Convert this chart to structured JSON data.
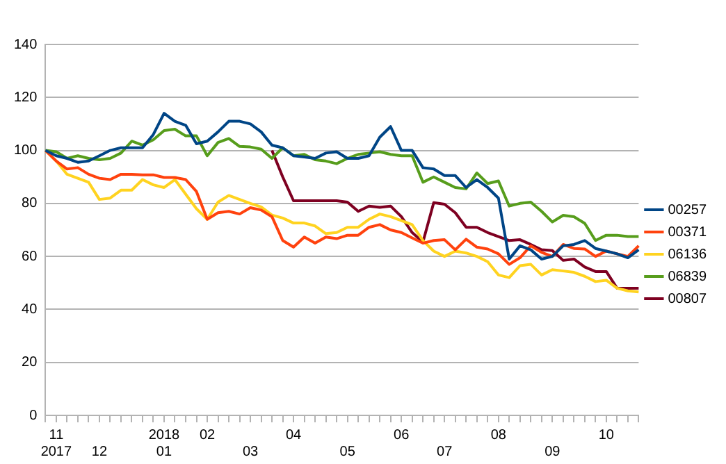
{
  "chart_data": {
    "type": "line",
    "categories": [
      null,
      "11\n2017",
      null,
      null,
      null,
      "12",
      null,
      null,
      null,
      null,
      null,
      "2018\n01",
      null,
      null,
      null,
      "02",
      null,
      null,
      null,
      "03",
      null,
      null,
      null,
      "04",
      null,
      null,
      null,
      null,
      "05",
      null,
      null,
      null,
      null,
      "06",
      null,
      null,
      null,
      "07",
      null,
      null,
      null,
      null,
      "08",
      null,
      null,
      null,
      null,
      "09",
      null,
      null,
      null,
      null,
      "10",
      null,
      null,
      null
    ],
    "series": [
      {
        "name": "00257",
        "color": "#004586",
        "values": [
          100,
          98,
          97,
          95.5,
          96,
          98,
          100,
          101,
          101,
          101,
          106,
          114,
          111,
          109.5,
          102.5,
          103.5,
          107,
          111,
          111,
          110,
          107,
          102,
          101,
          98,
          97.5,
          97,
          99,
          99.5,
          97,
          97,
          98,
          105,
          109,
          100,
          100,
          93.5,
          93,
          90.5,
          90.5,
          86,
          89,
          86,
          82,
          59,
          64,
          62.5,
          59,
          60,
          64,
          64.5,
          66,
          63,
          62,
          61,
          59.5,
          62.5
        ]
      },
      {
        "name": "00371",
        "color": "#ff420e",
        "values": [
          100,
          96,
          93,
          93.5,
          91,
          89.5,
          89,
          91,
          91,
          90.8,
          90.8,
          89.8,
          89.8,
          89,
          84.5,
          74,
          76.5,
          77,
          76,
          78.4,
          77.5,
          75,
          66,
          63.5,
          67.3,
          65,
          67.3,
          66.7,
          68,
          68,
          71,
          72,
          70,
          69,
          67,
          65,
          66,
          66.3,
          62.5,
          66.5,
          63.5,
          62.8,
          61,
          57,
          59.5,
          64,
          61.5,
          60,
          64.5,
          63,
          62.8,
          60,
          62,
          61,
          60,
          64
        ]
      },
      {
        "name": "06136",
        "color": "#ffd320",
        "values": [
          100,
          96,
          91,
          89.5,
          88,
          81.5,
          82,
          85,
          85,
          89,
          87,
          86,
          89,
          83.5,
          78,
          74,
          80.5,
          83,
          81.5,
          80,
          78.7,
          75.6,
          74.5,
          72.6,
          72.6,
          71.5,
          68.6,
          69,
          71,
          71,
          74,
          76,
          75,
          73.5,
          72,
          66,
          62,
          60,
          62,
          61.3,
          60,
          58,
          53,
          52,
          56.5,
          57,
          53,
          55,
          54.5,
          54,
          52.5,
          50.5,
          51,
          48,
          47,
          46.6
        ]
      },
      {
        "name": "06839",
        "color": "#579d1c",
        "values": [
          100,
          99.5,
          97,
          98,
          97,
          96.5,
          97,
          99,
          103.5,
          102,
          104,
          107.5,
          108,
          105.5,
          105.5,
          98,
          103,
          104.5,
          101.5,
          101.3,
          100.5,
          97,
          101,
          98,
          98.5,
          96.5,
          96,
          95,
          97,
          98.5,
          99,
          99.5,
          98.5,
          98,
          98,
          88,
          90,
          88,
          86,
          85.5,
          91.5,
          87.5,
          88.5,
          79,
          80,
          80.5,
          77,
          73,
          75.5,
          75,
          72.5,
          66,
          68,
          68,
          67.5,
          67.5
        ]
      },
      {
        "name": "00807",
        "color": "#7e0021",
        "values": [
          null,
          null,
          null,
          null,
          null,
          null,
          null,
          null,
          null,
          null,
          null,
          null,
          null,
          null,
          null,
          null,
          null,
          null,
          null,
          null,
          null,
          100,
          90,
          81,
          81,
          81,
          81,
          81,
          80.5,
          77,
          79,
          78.5,
          79,
          75,
          69,
          65.4,
          80.3,
          79.7,
          76.5,
          71,
          71,
          69,
          67.5,
          66,
          66.3,
          64.5,
          62.5,
          62.2,
          58.5,
          59,
          56,
          54.3,
          54.3,
          48,
          48,
          48
        ]
      }
    ],
    "ylim": [
      0,
      140
    ],
    "yticks": [
      0,
      20,
      40,
      60,
      80,
      100,
      120,
      140
    ],
    "grid": "y",
    "legend": "right",
    "marker": "none",
    "line_style": "solid"
  }
}
